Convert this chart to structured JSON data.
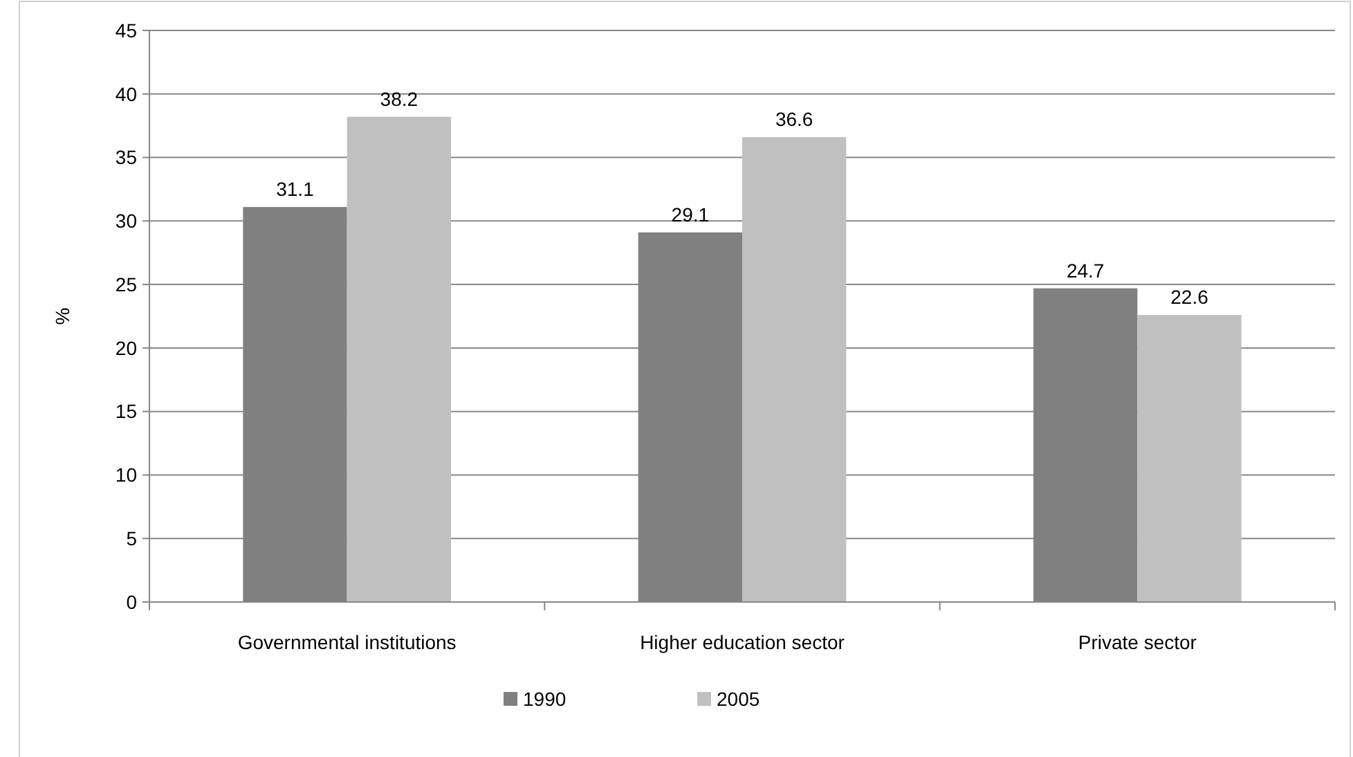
{
  "chart_data": {
    "type": "bar",
    "ylabel": "%",
    "categories": [
      "Governmental institutions",
      "Higher education sector",
      "Private sector"
    ],
    "series": [
      {
        "name": "1990",
        "color": "#808080",
        "values": [
          31.1,
          29.1,
          24.7
        ]
      },
      {
        "name": "2005",
        "color": "#c0c0c0",
        "values": [
          38.2,
          36.6,
          22.6
        ]
      }
    ],
    "ylim": [
      0,
      45
    ],
    "yticks": [
      0,
      5,
      10,
      15,
      20,
      25,
      30,
      35,
      40,
      45
    ],
    "grid": "y",
    "legend": "bottom",
    "data_labels": true
  }
}
